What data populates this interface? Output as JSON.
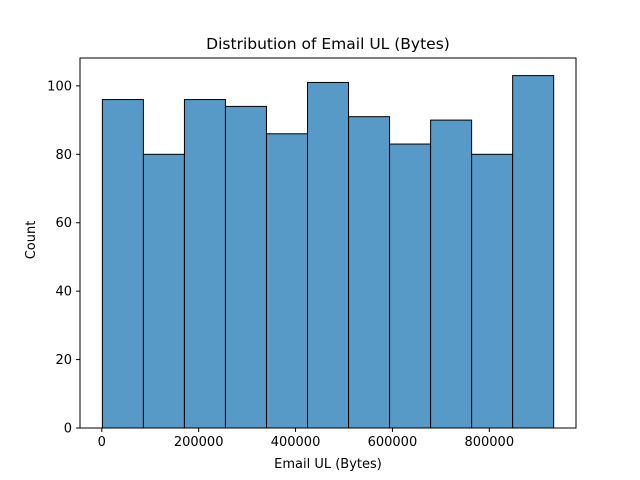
{
  "chart_data": {
    "type": "bar",
    "title": "Distribution of Email UL (Bytes)",
    "xlabel": "Email UL (Bytes)",
    "ylabel": "Count",
    "bin_edges": [
      1200,
      85900,
      170600,
      255300,
      340000,
      424700,
      509400,
      594100,
      678800,
      763500,
      848200,
      932900
    ],
    "values": [
      96,
      80,
      96,
      94,
      86,
      101,
      91,
      83,
      90,
      80,
      103
    ],
    "xlim": [
      -45000,
      979000
    ],
    "ylim": [
      0,
      108.15
    ],
    "xticks": [
      0,
      200000,
      400000,
      600000,
      800000
    ],
    "xtick_labels": [
      "0",
      "200000",
      "400000",
      "600000",
      "800000"
    ],
    "yticks": [
      0,
      20,
      40,
      60,
      80,
      100
    ],
    "ytick_labels": [
      "0",
      "20",
      "40",
      "60",
      "80",
      "100"
    ],
    "grid": false,
    "bar_color": "#5799c7",
    "edge_color": "#000000"
  }
}
